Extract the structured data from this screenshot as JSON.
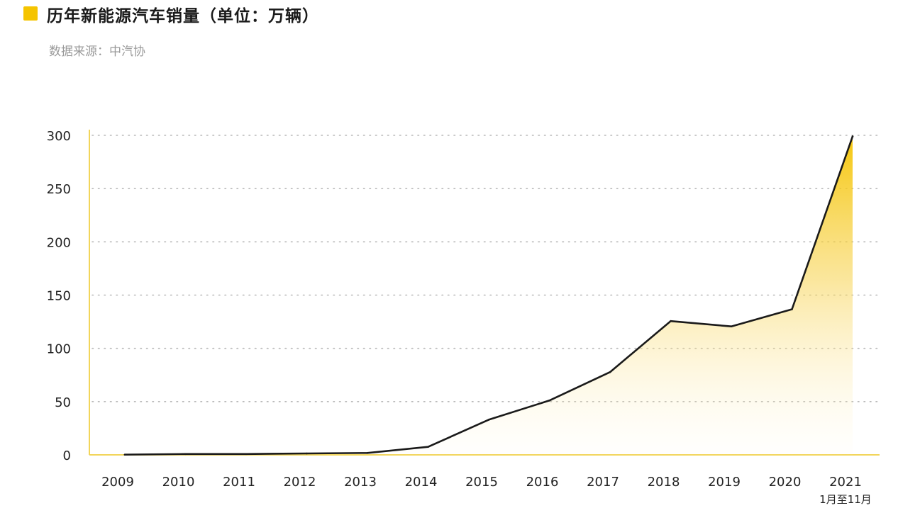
{
  "header": {
    "title": "历年新能源汽车销量（单位：万辆）",
    "source": "数据来源：中汽协"
  },
  "colors": {
    "accent": "#F5C400",
    "axis": "#F2D55A",
    "grid": "#B8B8B8",
    "line": "#1a1a1a"
  },
  "chart_data": {
    "type": "area",
    "title": "历年新能源汽车销量（单位：万辆）",
    "x": [
      "2009",
      "2010",
      "2011",
      "2012",
      "2013",
      "2014",
      "2015",
      "2016",
      "2017",
      "2018",
      "2019",
      "2020",
      "2021"
    ],
    "x_sublabels": [
      "",
      "",
      "",
      "",
      "",
      "",
      "",
      "",
      "",
      "",
      "",
      "",
      "1月至11月"
    ],
    "series": [
      {
        "values": [
          0.2,
          0.8,
          0.8,
          1.3,
          1.8,
          7.5,
          33,
          51,
          77.7,
          125.6,
          120.6,
          136.7,
          299
        ]
      }
    ],
    "ylim": [
      0,
      300
    ],
    "yticks": [
      0,
      50,
      100,
      150,
      200,
      250,
      300
    ],
    "grid": true,
    "xlabel": "",
    "ylabel": ""
  }
}
